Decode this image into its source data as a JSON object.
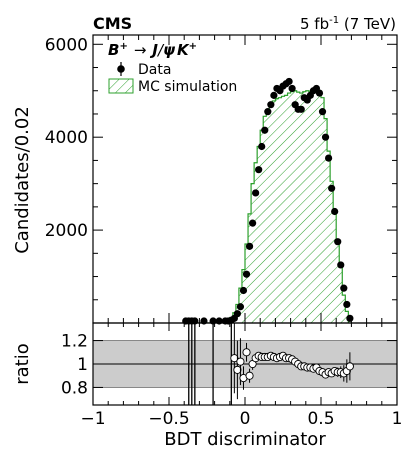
{
  "header": {
    "experiment": "CMS",
    "lumi_value": "5 fb",
    "lumi_exponent": "-1",
    "lumi_energy": " (7 TeV)"
  },
  "legend": {
    "process_B": "B",
    "process_B_charge": "+",
    "process_arrow": "→",
    "process_J": "J",
    "process_slash": "/",
    "process_psi": "ψ",
    "process_K": "K",
    "process_K_charge": "+",
    "data_label": "Data",
    "mc_label": "MC simulation",
    "placement": "top-left"
  },
  "colors": {
    "mc_hatch": "#2ca02c",
    "data_marker": "#000000",
    "ratio_band": "#cccccc",
    "ratio_marker_fill": "#ffffff"
  },
  "chart_data": [
    {
      "type": "bar",
      "panel": "main",
      "ylabel": "Candidates/0.02",
      "xlim": [
        -1,
        1
      ],
      "ylim": [
        0,
        6200
      ],
      "yticks": [
        2000,
        4000,
        6000
      ],
      "bin_width": 0.02,
      "series": [
        {
          "name": "MC simulation",
          "style": "green hatched histogram",
          "bin_low_edges": [
            -0.38,
            -0.36,
            -0.34,
            -0.32,
            -0.3,
            -0.28,
            -0.26,
            -0.24,
            -0.22,
            -0.2,
            -0.18,
            -0.16,
            -0.14,
            -0.12,
            -0.1,
            -0.08,
            -0.06,
            -0.04,
            -0.02,
            0.0,
            0.02,
            0.04,
            0.06,
            0.08,
            0.1,
            0.12,
            0.14,
            0.16,
            0.18,
            0.2,
            0.22,
            0.24,
            0.26,
            0.28,
            0.3,
            0.32,
            0.34,
            0.36,
            0.38,
            0.4,
            0.42,
            0.44,
            0.46,
            0.48,
            0.5,
            0.52,
            0.54,
            0.56,
            0.58,
            0.6,
            0.62,
            0.64,
            0.66,
            0.68
          ],
          "values": [
            0,
            0,
            0,
            0,
            0,
            0,
            0,
            0,
            0,
            0,
            0,
            20,
            40,
            60,
            120,
            220,
            400,
            750,
            1150,
            1700,
            2350,
            3000,
            3450,
            3800,
            4150,
            4450,
            4600,
            4700,
            4780,
            4830,
            4850,
            4880,
            4900,
            4950,
            4980,
            5000,
            4970,
            4950,
            4980,
            5000,
            4980,
            4980,
            4990,
            5000,
            4850,
            4400,
            3700,
            3050,
            2350,
            1700,
            1200,
            600,
            250,
            0
          ]
        },
        {
          "name": "Data",
          "style": "black dots with error bars",
          "x": [
            -0.39,
            -0.37,
            -0.35,
            -0.33,
            -0.27,
            -0.21,
            -0.17,
            -0.13,
            -0.11,
            -0.09,
            -0.07,
            -0.05,
            -0.03,
            -0.01,
            0.01,
            0.03,
            0.05,
            0.07,
            0.09,
            0.11,
            0.13,
            0.15,
            0.17,
            0.19,
            0.21,
            0.23,
            0.25,
            0.27,
            0.29,
            0.31,
            0.33,
            0.35,
            0.37,
            0.39,
            0.41,
            0.43,
            0.45,
            0.47,
            0.49,
            0.51,
            0.53,
            0.55,
            0.57,
            0.59,
            0.61,
            0.63,
            0.65,
            0.67,
            0.69
          ],
          "values": [
            0,
            0,
            0,
            0,
            0,
            0,
            0,
            20,
            40,
            60,
            100,
            200,
            350,
            700,
            1050,
            1650,
            2150,
            2800,
            3300,
            3800,
            4150,
            4550,
            4700,
            4900,
            5050,
            5000,
            5100,
            5150,
            5200,
            5050,
            4700,
            4600,
            4600,
            4850,
            4800,
            4900,
            5000,
            5050,
            4950,
            4550,
            4000,
            3550,
            2900,
            2400,
            1750,
            1250,
            750,
            400,
            100
          ]
        }
      ]
    },
    {
      "type": "scatter",
      "panel": "ratio",
      "xlabel": "BDT discriminator",
      "ylabel": "ratio",
      "xlim": [
        -1,
        1
      ],
      "ylim": [
        0.65,
        1.35
      ],
      "xticks": [
        -1,
        -0.5,
        0,
        0.5,
        1
      ],
      "x_tick_labels": [
        "−1",
        "−0.5",
        "0",
        "0.5",
        "1"
      ],
      "yticks": [
        0.8,
        1,
        1.2
      ],
      "y_tick_labels": [
        "0.8",
        "1",
        "1.2"
      ],
      "band": [
        0.8,
        1.2
      ],
      "series": [
        {
          "name": "Data / MC",
          "x": [
            -0.07,
            -0.05,
            -0.03,
            -0.01,
            0.01,
            0.03,
            0.05,
            0.07,
            0.09,
            0.11,
            0.13,
            0.15,
            0.17,
            0.19,
            0.21,
            0.23,
            0.25,
            0.27,
            0.29,
            0.31,
            0.33,
            0.35,
            0.37,
            0.39,
            0.41,
            0.43,
            0.45,
            0.47,
            0.49,
            0.51,
            0.53,
            0.55,
            0.57,
            0.59,
            0.61,
            0.63,
            0.65,
            0.67,
            0.69
          ],
          "values": [
            1.05,
            0.95,
            1.02,
            0.88,
            1.1,
            0.9,
            1.0,
            1.05,
            1.07,
            1.06,
            1.06,
            1.06,
            1.07,
            1.06,
            1.05,
            1.06,
            1.07,
            1.05,
            1.05,
            1.04,
            1.02,
            1.0,
            0.98,
            0.98,
            0.97,
            0.97,
            0.96,
            0.97,
            0.94,
            0.93,
            0.91,
            0.93,
            0.92,
            0.94,
            0.93,
            0.93,
            0.92,
            0.94,
            0.98
          ],
          "errors": [
            0.3,
            0.25,
            0.2,
            0.1,
            0.08,
            0.06,
            0.05,
            0.04,
            0.03,
            0.03,
            0.03,
            0.02,
            0.02,
            0.02,
            0.02,
            0.02,
            0.02,
            0.02,
            0.02,
            0.02,
            0.02,
            0.02,
            0.02,
            0.02,
            0.02,
            0.02,
            0.02,
            0.02,
            0.02,
            0.02,
            0.02,
            0.03,
            0.03,
            0.03,
            0.04,
            0.05,
            0.07,
            0.1,
            0.12
          ]
        }
      ],
      "offscale_error_bars_x": [
        -0.37,
        -0.35,
        -0.33,
        -0.21,
        -0.09
      ]
    }
  ]
}
